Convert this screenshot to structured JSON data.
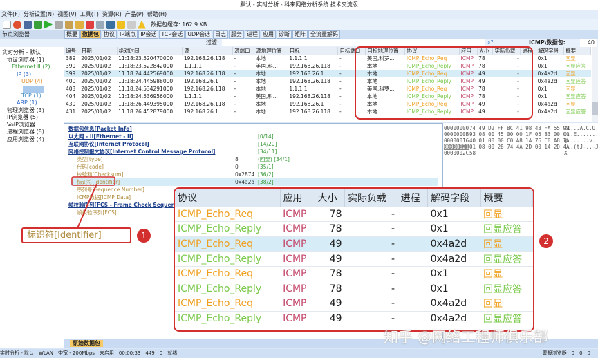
{
  "window": {
    "title": "默认 - 实时分析 - 科来网络分析系统 技术交流版"
  },
  "menu": [
    "文件(F)",
    "分析设置(N)",
    "视图(V)",
    "工具(T)",
    "资源(R)",
    "产品(P)",
    "帮助(H)"
  ],
  "toolbar": {
    "buffer": "数据包缓存: 162.9 KB"
  },
  "left": {
    "header": "节点浏览器",
    "tree": [
      {
        "label": "实时分析 - 默认",
        "indent": 0,
        "color": "#222"
      },
      {
        "label": "协议浏览器 (1)",
        "indent": 1,
        "color": "#222"
      },
      {
        "label": "Ethernet II (2)",
        "indent": 2,
        "color": "#3a9a3a"
      },
      {
        "label": "IP (3)",
        "indent": 3,
        "color": "#2a66c4"
      },
      {
        "label": "UDP (4)",
        "indent": 4,
        "color": "#e0902a"
      },
      {
        "label": "",
        "indent": 4,
        "color": "#fff",
        "selected": true
      },
      {
        "label": "TCP (1)",
        "indent": 4,
        "color": "#3a8ac0"
      },
      {
        "label": "ARP (1)",
        "indent": 3,
        "color": "#2a66c4"
      },
      {
        "label": "物理浏览器 (3)",
        "indent": 1,
        "color": "#222"
      },
      {
        "label": "IP浏览器 (5)",
        "indent": 1,
        "color": "#222"
      },
      {
        "label": "VoIP浏览器",
        "indent": 1,
        "color": "#222"
      },
      {
        "label": "进程浏览器 (8)",
        "indent": 1,
        "color": "#222"
      },
      {
        "label": "应用浏览器 (4)",
        "indent": 1,
        "color": "#222"
      }
    ]
  },
  "tabs": [
    "概要",
    "数据包",
    "协议",
    "IP端点",
    "IP会话",
    "TCP会话",
    "UDP会话",
    "日志",
    "服务",
    "进程",
    "应用",
    "诊断",
    "矩阵",
    "全流量解码"
  ],
  "active_tab": "数据包",
  "filter_label": "过滤:",
  "packet_count": {
    "label": "ICMP\\数据包:",
    "value": "40"
  },
  "packets": {
    "columns": [
      "编号",
      "日期",
      "绝对时间",
      "源",
      "源端口",
      "源地理位置",
      "目标",
      "目标端口",
      "目标地理位置",
      "协议",
      "应用",
      "大小",
      "实际负载",
      "进程",
      "解码字段",
      "概要"
    ],
    "rows": [
      [
        "389",
        "2025/01/02",
        "11:18:23.520470000",
        "192.168.26.118",
        "-",
        "本地",
        "1.1.1.1",
        "-",
        "美国,科罗...",
        "ICMP_Echo_Req",
        "ICMP",
        "78",
        "-",
        "",
        "0x1",
        "回显"
      ],
      [
        "390",
        "2025/01/02",
        "11:18:23.522842000",
        "1.1.1.1",
        "-",
        "美国,科...",
        "192.168.26.118",
        "-",
        "本地",
        "ICMP_Echo_Reply",
        "ICMP",
        "78",
        "-",
        "",
        "0x1",
        "回显应答"
      ],
      [
        "399",
        "2025/01/02",
        "11:18:24.442569000",
        "192.168.26.118",
        "-",
        "本地",
        "192.168.26.1",
        "-",
        "本地",
        "ICMP_Echo_Req",
        "ICMP",
        "49",
        "-",
        "",
        "0x4a2d",
        "回显"
      ],
      [
        "400",
        "2025/01/02",
        "11:18:24.445988000",
        "192.168.26.1",
        "-",
        "本地",
        "192.168.26.118",
        "-",
        "本地",
        "ICMP_Echo_Reply",
        "ICMP",
        "49",
        "-",
        "",
        "0x4a2d",
        "回显应答"
      ],
      [
        "403",
        "2025/01/02",
        "11:18:24.534291000",
        "192.168.26.118",
        "-",
        "本地",
        "1.1.1.1",
        "-",
        "美国,科罗...",
        "ICMP_Echo_Req",
        "ICMP",
        "78",
        "-",
        "",
        "0x1",
        "回显"
      ],
      [
        "404",
        "2025/01/02",
        "11:18:24.536956000",
        "1.1.1.1",
        "-",
        "美国,科...",
        "192.168.26.118",
        "-",
        "本地",
        "ICMP_Echo_Reply",
        "ICMP",
        "78",
        "-",
        "",
        "0x1",
        "回显应答"
      ],
      [
        "430",
        "2025/01/02",
        "11:18:26.449395000",
        "192.168.26.118",
        "-",
        "本地",
        "192.168.26.1",
        "-",
        "本地",
        "ICMP_Echo_Req",
        "ICMP",
        "49",
        "-",
        "",
        "0x4a2d",
        "回显"
      ],
      [
        "431",
        "2025/01/02",
        "11:18:26.452879000",
        "192.168.26.1",
        "-",
        "本地",
        "192.168.26.118",
        "-",
        "本地",
        "ICMP_Echo_Reply",
        "ICMP",
        "49",
        "-",
        "",
        "0x4a2d",
        "回显应答"
      ]
    ],
    "selected_index": 2
  },
  "decode": [
    {
      "label": "数据包信息[Packet Info]",
      "indent": 0,
      "bold": true,
      "value": "",
      "range": ""
    },
    {
      "label": "以太网 - II[Ethernet - II]",
      "indent": 0,
      "bold": true,
      "value": "",
      "range": "[0/14]"
    },
    {
      "label": "互联网协议[Internet Protocol]",
      "indent": 0,
      "bold": true,
      "value": "",
      "range": "[14/20]"
    },
    {
      "label": "网络控制报文协议[Internet Control Message Protocol]",
      "indent": 0,
      "bold": true,
      "value": "",
      "range": "[34/11]"
    },
    {
      "label": "类型[type]",
      "indent": 1,
      "value": "8",
      "range": "(回显)  [34/1]"
    },
    {
      "label": "代码[code]",
      "indent": 1,
      "value": "0",
      "range": "[35/1]"
    },
    {
      "label": "校验和[Checksum]",
      "indent": 1,
      "value": "0x2874",
      "range": "[36/2]"
    },
    {
      "label": "标识符[Identifier]",
      "indent": 1,
      "value": "0x4a2d",
      "range": "[38/2]",
      "selected": true
    },
    {
      "label": "序列号[Sequence Number]",
      "indent": 1,
      "value": "0x14",
      "range": "[40/2]"
    },
    {
      "label": "ICMP数据[ICMP Data]",
      "indent": 1,
      "value": "",
      "range": ""
    },
    {
      "label": "帧校验序列[FCS - Frame Check Sequence]",
      "indent": 0,
      "bold": true,
      "value": "",
      "range": ""
    },
    {
      "label": "帧校验序列[FCS]",
      "indent": 1,
      "value": "",
      "range": ""
    }
  ],
  "hex": {
    "offsets": [
      "00000000",
      "0000000B",
      "00000016",
      "00000021",
      "0000002C"
    ],
    "bytes": [
      "74 49 D2 FF 8C 41 98 43 FA 55 99",
      "93 08 00 45 00 00 1F 05 83 00 00",
      "40 01 00 00 C0 A8 1A 76 C0 A8 1A",
      "01 08 00 28 74 4A 2D 00 14 2D 4A",
      "58"
    ],
    "ascii": [
      "tI...A.C.U.",
      "...E.......",
      "@.......v...",
      "...(tJ-..-J",
      "X"
    ]
  },
  "bottom_tab": "原始数据包",
  "status": [
    "实时分析 - 默认",
    "WLAN",
    "带宽 - 200Mbps",
    "未启用",
    "00:00:33",
    "449",
    "0",
    "就绪"
  ],
  "status_right": [
    "警报浏览器",
    "0",
    "0",
    "0"
  ],
  "callout": {
    "label": "标识符[Identifier]",
    "num1": "1",
    "num2": "2"
  },
  "watermark": "知乎 @网络工程师俱乐部",
  "colors": {
    "req": "#f0a020",
    "reply": "#7ac94a",
    "app": "#c4476a",
    "highlight": "#d32f2f",
    "selected_row": "#d6ecf7"
  }
}
